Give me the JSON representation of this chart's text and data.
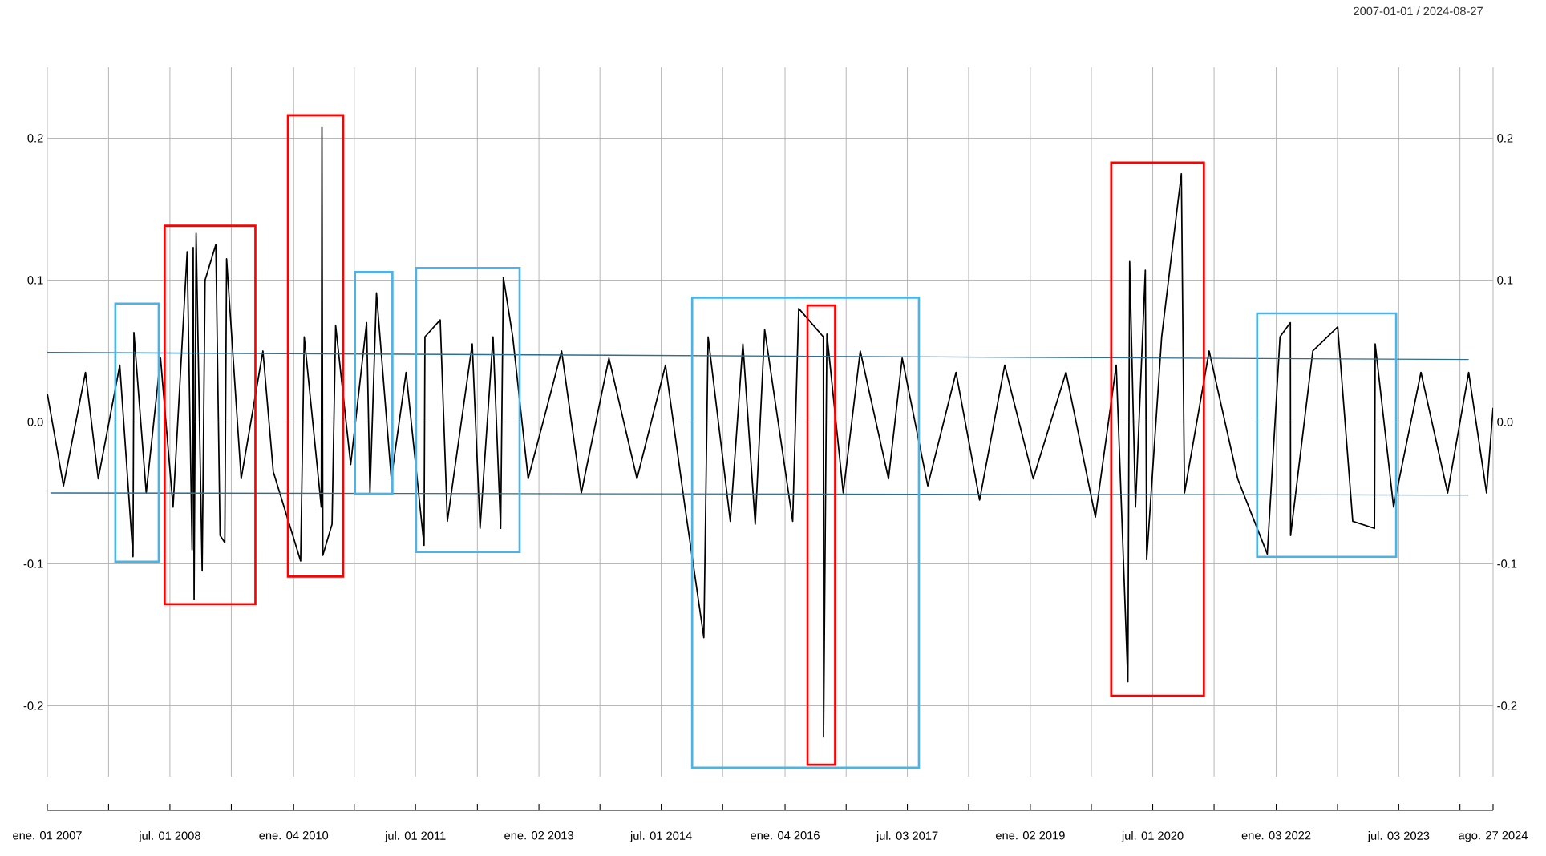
{
  "chart_data": {
    "type": "line",
    "subtitle": "2007-01-01 / 2024-08-27",
    "grid": true,
    "xlim": [
      "2007-01-01",
      "2024-08-27"
    ],
    "ylim": [
      -0.25,
      0.25
    ],
    "yticks": [
      -0.2,
      -0.1,
      {
        "value": 0,
        "label": "0.0"
      },
      0.1,
      0.2
    ],
    "y2lim": [
      -0.25,
      0.25
    ],
    "y2ticks": [
      -0.2,
      -0.1,
      {
        "value": 0,
        "label": "0.0"
      },
      0.1,
      0.2
    ],
    "xticks": [
      {
        "value": "2007-01-01",
        "label": "ene. 01 2007"
      },
      {
        "value": "2007-10-01",
        "label": null
      },
      {
        "value": "2008-07-01",
        "label": "jul. 01 2008"
      },
      {
        "value": "2009-04-01",
        "label": null
      },
      {
        "value": "2010-01-04",
        "label": "ene. 04 2010"
      },
      {
        "value": "2010-10-01",
        "label": null
      },
      {
        "value": "2011-07-01",
        "label": "jul. 01 2011"
      },
      {
        "value": "2012-04-02",
        "label": null
      },
      {
        "value": "2013-01-02",
        "label": "ene. 02 2013"
      },
      {
        "value": "2013-10-01",
        "label": null
      },
      {
        "value": "2014-07-01",
        "label": "jul. 01 2014"
      },
      {
        "value": "2015-04-01",
        "label": null
      },
      {
        "value": "2016-01-04",
        "label": "ene. 04 2016"
      },
      {
        "value": "2016-10-03",
        "label": null
      },
      {
        "value": "2017-07-03",
        "label": "jul. 03 2017"
      },
      {
        "value": "2018-04-02",
        "label": null
      },
      {
        "value": "2019-01-02",
        "label": "ene. 02 2019"
      },
      {
        "value": "2019-10-01",
        "label": null
      },
      {
        "value": "2020-07-01",
        "label": "jul. 01 2020"
      },
      {
        "value": "2021-04-01",
        "label": null
      },
      {
        "value": "2022-01-03",
        "label": "ene. 03 2022"
      },
      {
        "value": "2022-10-03",
        "label": null
      },
      {
        "value": "2023-07-03",
        "label": "jul. 03 2023"
      },
      {
        "value": "2024-04-01",
        "label": null
      },
      {
        "value": "2024-08-27",
        "label": "ago. 27 2024"
      }
    ],
    "series": [
      {
        "color": "#000000",
        "x": [
          "2007-01-01",
          "2007-03-14",
          "2007-06-20",
          "2007-08-16",
          "2007-11-20",
          "2008-01-18",
          "2008-01-22",
          "2008-03-17",
          "2008-05-20",
          "2008-07-15",
          "2008-09-16",
          "2008-10-08",
          "2008-10-13",
          "2008-10-17",
          "2008-10-26",
          "2008-11-22",
          "2008-12-05",
          "2009-01-22",
          "2009-02-10",
          "2009-03-03",
          "2009-03-11",
          "2009-05-15",
          "2009-08-20",
          "2009-10-05",
          "2010-02-04",
          "2010-02-20",
          "2010-05-07",
          "2010-05-10",
          "2010-05-14",
          "2010-06-24",
          "2010-07-10",
          "2010-09-15",
          "2010-11-25",
          "2010-12-10",
          "2011-01-08",
          "2011-03-15",
          "2011-05-20",
          "2011-08-08",
          "2011-08-12",
          "2011-10-19",
          "2011-11-20",
          "2012-03-10",
          "2012-04-14",
          "2012-06-11",
          "2012-07-15",
          "2012-07-27",
          "2012-09-07",
          "2012-11-15",
          "2013-04-13",
          "2013-07-10",
          "2013-11-10",
          "2014-03-15",
          "2014-07-20",
          "2014-10-15",
          "2015-01-07",
          "2015-01-26",
          "2015-05-05",
          "2015-06-30",
          "2015-08-24",
          "2015-10-05",
          "2016-02-07",
          "2016-03-05",
          "2016-06-23",
          "2016-06-24",
          "2016-07-09",
          "2016-09-20",
          "2016-12-05",
          "2017-04-10",
          "2017-06-10",
          "2017-10-02",
          "2018-02-05",
          "2018-05-21",
          "2018-09-10",
          "2019-01-15",
          "2019-06-10",
          "2019-10-19",
          "2020-01-20",
          "2020-03-12",
          "2020-03-20",
          "2020-04-15",
          "2020-05-29",
          "2020-06-04",
          "2020-08-10",
          "2020-11-06",
          "2020-11-20",
          "2021-03-10",
          "2021-07-15",
          "2021-11-24",
          "2022-01-20",
          "2022-03-07",
          "2022-03-08",
          "2022-06-15",
          "2022-10-04",
          "2022-12-10",
          "2023-03-17",
          "2023-03-20",
          "2023-06-10",
          "2023-10-10",
          "2024-02-06",
          "2024-05-10",
          "2024-07-29",
          "2024-08-27"
        ],
        "values": [
          0.02,
          -0.045,
          0.035,
          -0.04,
          0.04,
          -0.095,
          0.063,
          -0.05,
          0.045,
          -0.06,
          0.12,
          -0.09,
          0.123,
          -0.125,
          0.133,
          -0.105,
          0.1,
          0.125,
          -0.08,
          -0.085,
          0.115,
          -0.04,
          0.05,
          -0.035,
          -0.098,
          0.06,
          -0.06,
          0.208,
          -0.094,
          -0.072,
          0.068,
          -0.03,
          0.07,
          -0.05,
          0.091,
          -0.04,
          0.035,
          -0.087,
          0.06,
          0.072,
          -0.07,
          0.055,
          -0.075,
          0.06,
          -0.075,
          0.102,
          0.06,
          -0.04,
          0.05,
          -0.05,
          0.045,
          -0.04,
          0.04,
          -0.06,
          -0.152,
          0.06,
          -0.07,
          0.055,
          -0.072,
          0.065,
          -0.07,
          0.08,
          0.06,
          -0.222,
          0.062,
          -0.05,
          0.05,
          -0.04,
          0.045,
          -0.045,
          0.035,
          -0.055,
          0.04,
          -0.04,
          0.035,
          -0.067,
          0.04,
          -0.183,
          0.113,
          -0.06,
          0.107,
          -0.097,
          0.06,
          0.175,
          -0.05,
          0.05,
          -0.04,
          -0.093,
          0.06,
          0.07,
          -0.08,
          0.05,
          0.067,
          -0.07,
          -0.075,
          0.055,
          -0.06,
          0.035,
          -0.05,
          0.035,
          -0.05,
          0.01
        ]
      },
      {
        "color": "#2e6e8e",
        "x": [
          "2007-01-01",
          "2024-05-10"
        ],
        "values": [
          0.049,
          0.044
        ]
      },
      {
        "color": "#2e6e8e",
        "x": [
          "2007-01-15",
          "2024-05-10"
        ],
        "values": [
          -0.05,
          -0.0515
        ]
      }
    ]
  }
}
